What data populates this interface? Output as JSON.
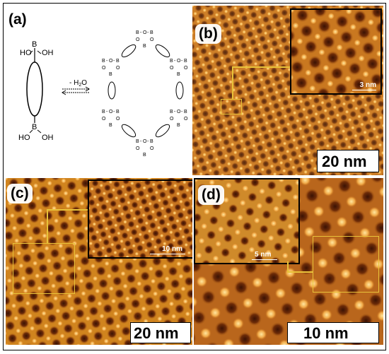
{
  "panels": {
    "a": {
      "label": "(a)",
      "monomer": {
        "top_left": "HO",
        "top_B": "B",
        "top_right": "OH",
        "bot_left": "HO",
        "bot_B": "B",
        "bot_right": "OH"
      },
      "reaction_label": "- H",
      "reaction_sub": "2",
      "reaction_tail": "O",
      "ring_B": "B",
      "ring_O": "O"
    },
    "b": {
      "label": "(b)",
      "scale": "20 nm",
      "inset_scale": "3 nm"
    },
    "c": {
      "label": "(c)",
      "scale": "20 nm",
      "inset_scale": "10 nm"
    },
    "d": {
      "label": "(d)",
      "scale": "10 nm",
      "inset_scale": "5 nm"
    }
  },
  "colors": {
    "accent_frame": "#e8c23a",
    "stm_dark": "#2a0f02",
    "stm_light": "#ffe9a0"
  }
}
